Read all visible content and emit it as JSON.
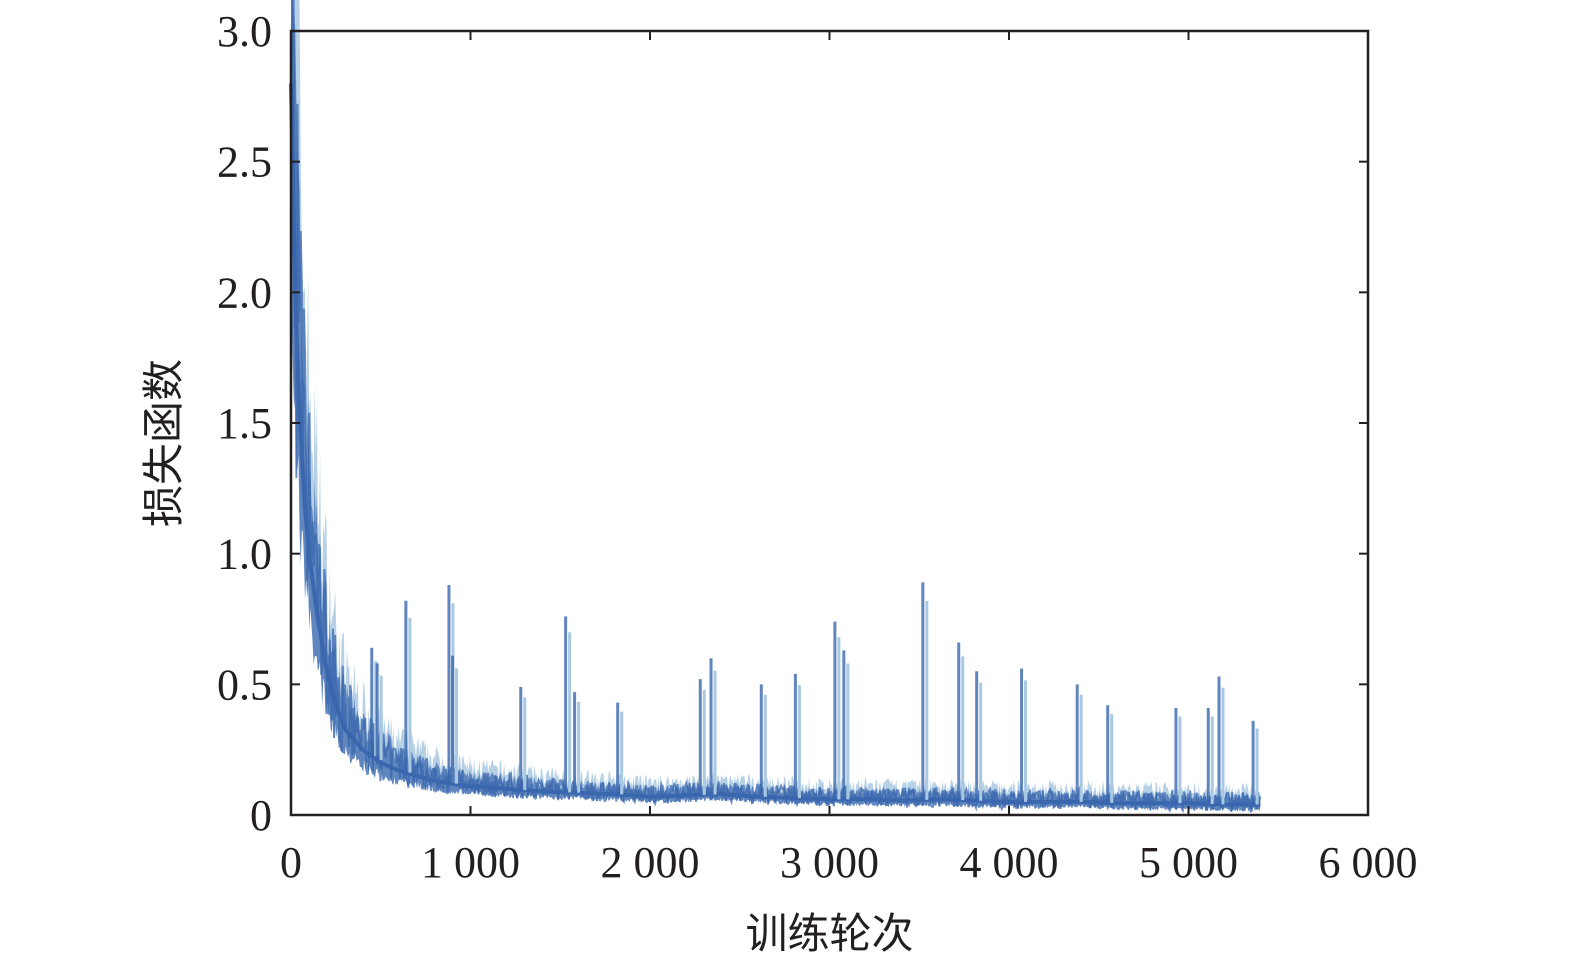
{
  "chart_data": {
    "type": "line",
    "title": "",
    "xlabel": "训练轮次",
    "ylabel": "损失函数",
    "xlim": [
      0,
      6000
    ],
    "ylim": [
      0,
      3.0
    ],
    "x_ticks": [
      0,
      1000,
      2000,
      3000,
      4000,
      5000,
      6000
    ],
    "x_tick_labels": [
      "0",
      "1 000",
      "2 000",
      "3 000",
      "4 000",
      "5 000",
      "6 000"
    ],
    "y_ticks": [
      0,
      0.5,
      1.0,
      1.5,
      2.0,
      2.5,
      3.0
    ],
    "y_tick_labels": [
      "0",
      "0.5",
      "1.0",
      "1.5",
      "2.0",
      "2.5",
      "3.0"
    ],
    "grid": false,
    "legend": "none",
    "series": [
      {
        "color": "#3a66ad",
        "band_color": "#a9c9e2",
        "x": [
          0,
          25,
          50,
          75,
          100,
          150,
          200,
          250,
          300,
          400,
          500,
          600,
          700,
          800,
          900,
          1000,
          1200,
          1400,
          1600,
          1800,
          2000,
          2200,
          2400,
          2600,
          2800,
          3000,
          3200,
          3400,
          3600,
          3800,
          4000,
          4200,
          4400,
          4600,
          4800,
          5000,
          5200,
          5400
        ],
        "y": [
          2.8,
          1.95,
          1.5,
          1.2,
          1.0,
          0.75,
          0.55,
          0.42,
          0.33,
          0.25,
          0.2,
          0.17,
          0.15,
          0.13,
          0.12,
          0.11,
          0.1,
          0.09,
          0.085,
          0.08,
          0.07,
          0.075,
          0.08,
          0.07,
          0.065,
          0.06,
          0.06,
          0.055,
          0.06,
          0.055,
          0.05,
          0.05,
          0.05,
          0.045,
          0.045,
          0.045,
          0.04,
          0.04
        ],
        "spikes": [
          {
            "x": 450,
            "y": 0.64
          },
          {
            "x": 480,
            "y": 0.58
          },
          {
            "x": 640,
            "y": 0.82
          },
          {
            "x": 880,
            "y": 0.88
          },
          {
            "x": 900,
            "y": 0.61
          },
          {
            "x": 1280,
            "y": 0.49
          },
          {
            "x": 1530,
            "y": 0.76
          },
          {
            "x": 1580,
            "y": 0.47
          },
          {
            "x": 1820,
            "y": 0.43
          },
          {
            "x": 2280,
            "y": 0.52
          },
          {
            "x": 2340,
            "y": 0.6
          },
          {
            "x": 2620,
            "y": 0.5
          },
          {
            "x": 2810,
            "y": 0.54
          },
          {
            "x": 3030,
            "y": 0.74
          },
          {
            "x": 3080,
            "y": 0.63
          },
          {
            "x": 3520,
            "y": 0.89
          },
          {
            "x": 3720,
            "y": 0.66
          },
          {
            "x": 3820,
            "y": 0.55
          },
          {
            "x": 4070,
            "y": 0.56
          },
          {
            "x": 4380,
            "y": 0.5
          },
          {
            "x": 4550,
            "y": 0.42
          },
          {
            "x": 4930,
            "y": 0.41
          },
          {
            "x": 5110,
            "y": 0.41
          },
          {
            "x": 5170,
            "y": 0.53
          },
          {
            "x": 5360,
            "y": 0.36
          }
        ]
      }
    ]
  }
}
